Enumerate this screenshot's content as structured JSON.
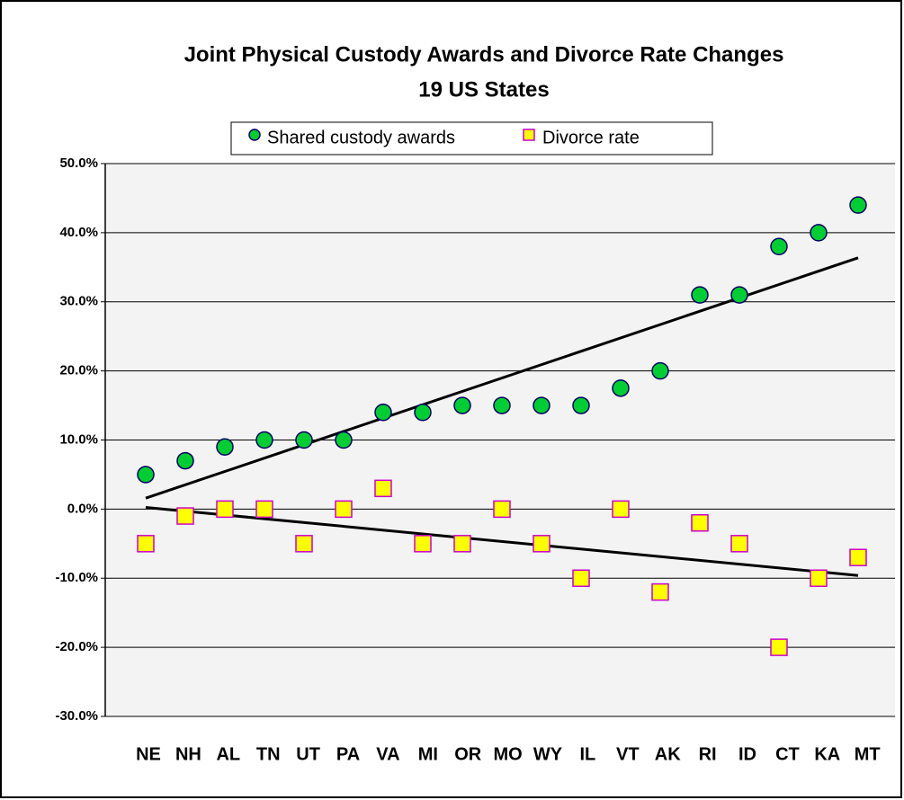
{
  "chart_data": {
    "type": "scatter",
    "title": "Joint Physical Custody Awards and Divorce Rate Changes",
    "subtitle": "19 US States",
    "categories": [
      "NE",
      "NH",
      "AL",
      "TN",
      "UT",
      "PA",
      "VA",
      "MI",
      "OR",
      "MO",
      "WY",
      "IL",
      "VT",
      "AK",
      "RI",
      "ID",
      "CT",
      "KA",
      "MT"
    ],
    "series": [
      {
        "name": "Shared custody awards",
        "color": "#00cc33",
        "marker": "circle",
        "trendline": true,
        "values": [
          5,
          7,
          9,
          10,
          10,
          10,
          14,
          14,
          15,
          15,
          15,
          15,
          17.5,
          20,
          31,
          31,
          38,
          40,
          44
        ]
      },
      {
        "name": "Divorce rate",
        "color": "#ffff00",
        "marker": "square",
        "trendline": true,
        "values": [
          -5,
          -1,
          0,
          0,
          -5,
          0,
          3,
          -5,
          -5,
          0,
          -5,
          -10,
          0,
          -12,
          -2,
          -5,
          -20,
          -10,
          -7
        ]
      }
    ],
    "ylim": [
      -30,
      50
    ],
    "yticks": [
      {
        "value": -30,
        "label": "-30.0%"
      },
      {
        "value": -20,
        "label": "-20.0%"
      },
      {
        "value": -10,
        "label": "-10.0%"
      },
      {
        "value": 0,
        "label": "0.0%"
      },
      {
        "value": 10,
        "label": "10.0%"
      },
      {
        "value": 20,
        "label": "20.0%"
      },
      {
        "value": 30,
        "label": "30.0%"
      },
      {
        "value": 40,
        "label": "40.0%"
      },
      {
        "value": 50,
        "label": "50.0%"
      }
    ],
    "grid": true,
    "legend": "top"
  }
}
